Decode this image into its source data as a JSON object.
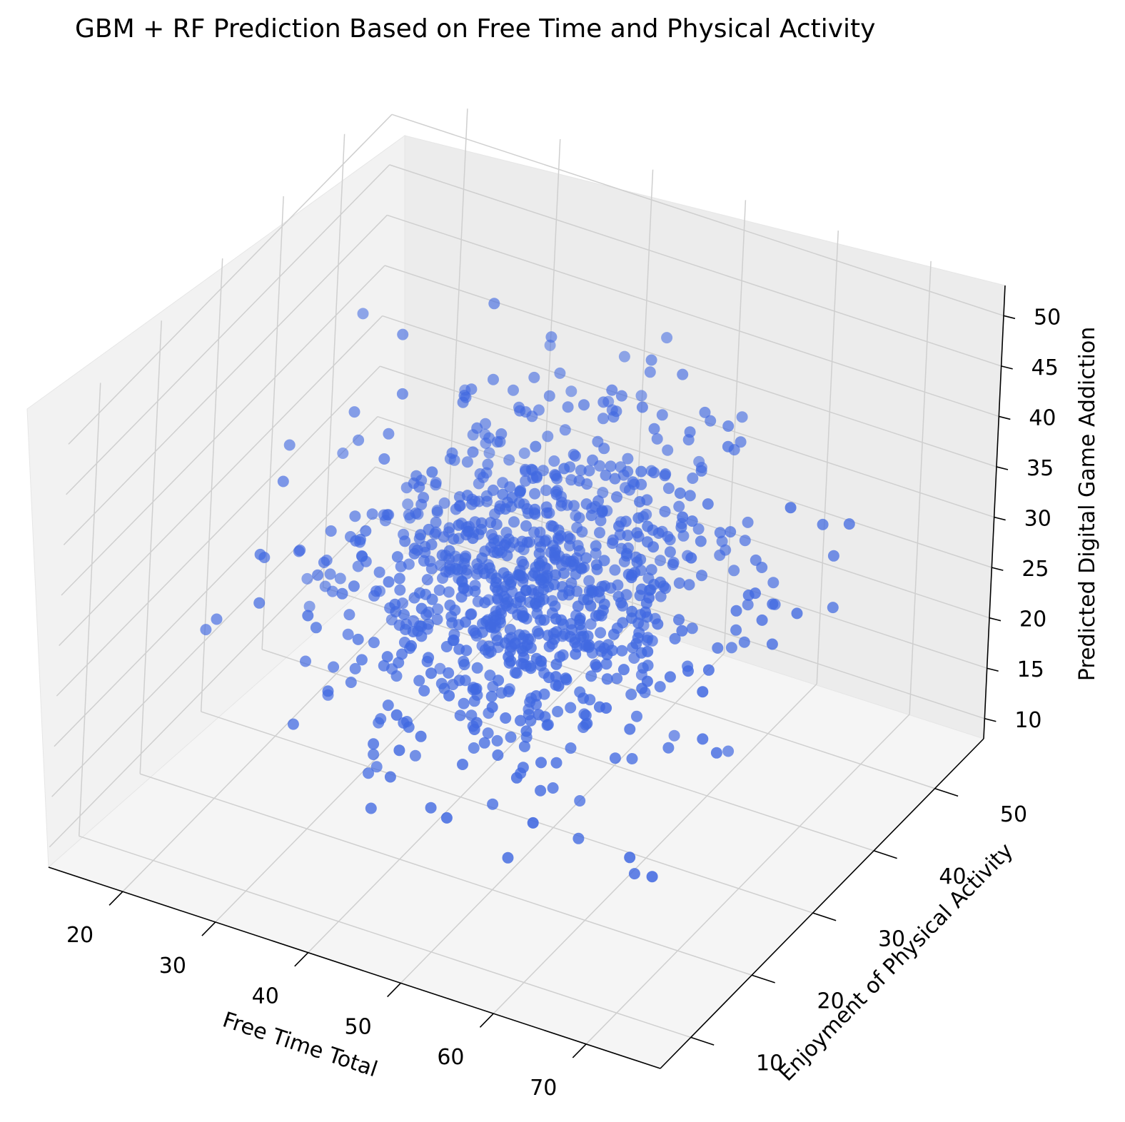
{
  "chart_data": {
    "type": "scatter",
    "title": "GBM + RF Prediction Based on Free Time and Physical Activity",
    "xlabel": "Free Time Total",
    "ylabel": "Enjoyment of Physical Activity",
    "zlabel": "Predicted Digital Game Addiction",
    "x_ticks": [
      "20",
      "30",
      "40",
      "50",
      "60",
      "70"
    ],
    "y_ticks": [
      "10",
      "20",
      "30",
      "40",
      "50"
    ],
    "z_ticks": [
      "10",
      "15",
      "20",
      "25",
      "30",
      "35",
      "40",
      "45",
      "50"
    ],
    "xlim": [
      12,
      78
    ],
    "ylim": [
      5,
      58
    ],
    "zlim": [
      8,
      53
    ],
    "point_color": "#4169e1",
    "point_alpha_range": [
      0.45,
      0.95
    ],
    "n_points": 950,
    "center": {
      "x": 45,
      "y": 32,
      "z": 30
    },
    "spread": {
      "x": 9,
      "y": 9,
      "z": 6
    },
    "grid": true
  }
}
